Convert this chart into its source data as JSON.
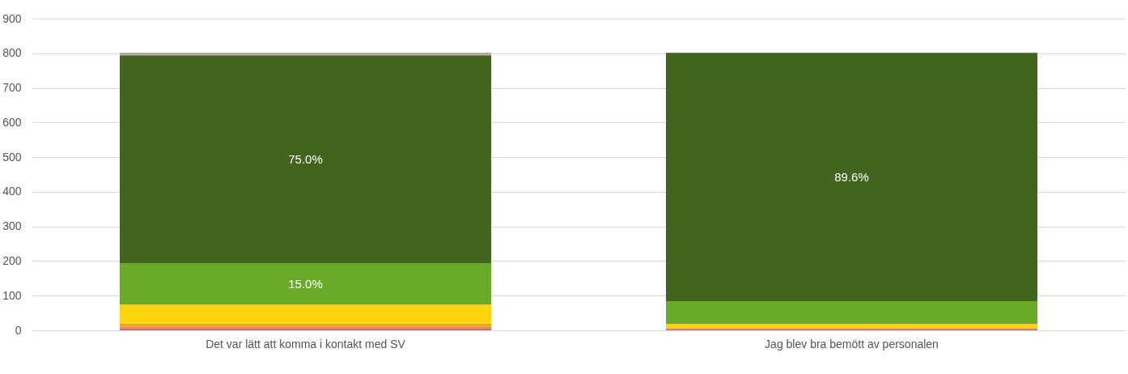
{
  "chart_data": {
    "type": "bar",
    "stacked": true,
    "categories": [
      "Det var lätt att komma i kontakt med SV",
      "Jag blev bra bemött av personalen"
    ],
    "series": [
      {
        "color": "#d9534f",
        "values": [
          4,
          3
        ]
      },
      {
        "color": "#e8856a",
        "values": [
          6,
          2
        ]
      },
      {
        "color": "#e6a817",
        "values": [
          10,
          2
        ]
      },
      {
        "color": "#fdd410",
        "values": [
          54,
          11
        ]
      },
      {
        "color": "#6aaa2a",
        "values": [
          120,
          66
        ]
      },
      {
        "color": "#43641e",
        "values": [
          600,
          717
        ]
      },
      {
        "color": "#b5ad9e",
        "values": [
          8,
          0
        ]
      }
    ],
    "annotations": [
      "15.0%",
      "75.0%",
      "89.6%"
    ],
    "ylim": [
      0,
      900
    ],
    "yticks": [
      0,
      100,
      200,
      300,
      400,
      500,
      600,
      700,
      800,
      900
    ],
    "grid": "y"
  }
}
